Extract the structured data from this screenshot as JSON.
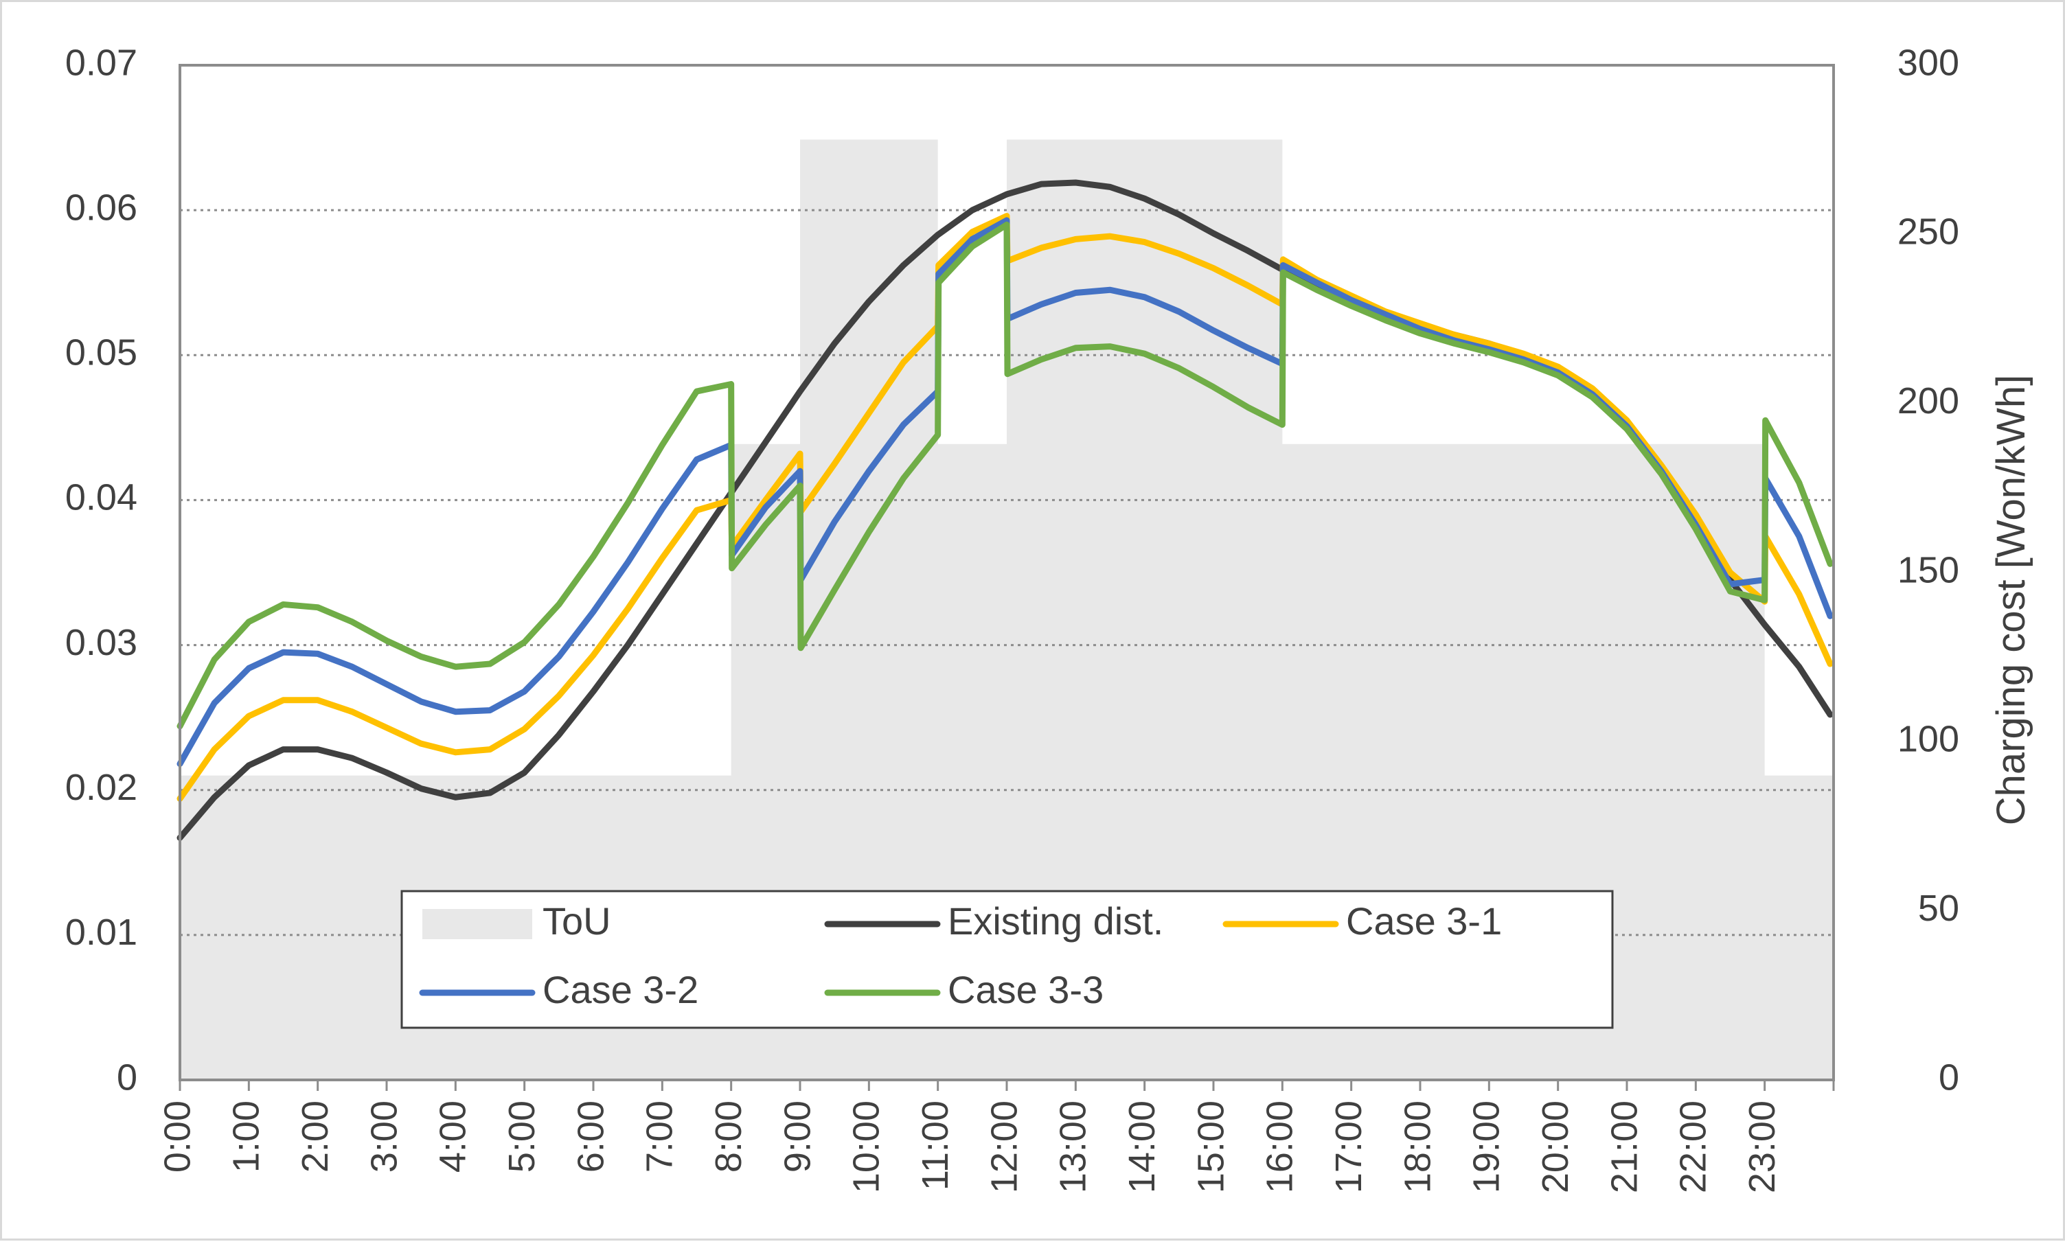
{
  "chart_data": {
    "type": "line",
    "title": "",
    "xlabel": "",
    "ylabel": "",
    "y2label": "Charging cost [Won/kWh]",
    "x": [
      "0:00",
      "1:00",
      "2:00",
      "3:00",
      "4:00",
      "5:00",
      "6:00",
      "7:00",
      "8:00",
      "9:00",
      "10:00",
      "11:00",
      "12:00",
      "13:00",
      "14:00",
      "15:00",
      "16:00",
      "17:00",
      "18:00",
      "19:00",
      "20:00",
      "21:00",
      "22:00",
      "23:00"
    ],
    "ylim": [
      0,
      0.07
    ],
    "yticks": [
      "0",
      "0.01",
      "0.02",
      "0.03",
      "0.04",
      "0.05",
      "0.06",
      "0.07"
    ],
    "y2lim": [
      0,
      300
    ],
    "y2ticks": [
      "0",
      "50",
      "100",
      "150",
      "200",
      "250",
      "300"
    ],
    "grid": "horizontal-dotted",
    "legend_position": "bottom-center-inside",
    "tou": {
      "name": "ToU",
      "color": "#e8e8e8",
      "axis": "secondary",
      "steps": [
        {
          "from": 0,
          "to": 8,
          "value": 90
        },
        {
          "from": 8,
          "to": 9,
          "value": 188
        },
        {
          "from": 9,
          "to": 11,
          "value": 278
        },
        {
          "from": 11,
          "to": 12,
          "value": 188
        },
        {
          "from": 12,
          "to": 16,
          "value": 278
        },
        {
          "from": 16,
          "to": 23,
          "value": 188
        },
        {
          "from": 23,
          "to": 24,
          "value": 90
        }
      ]
    },
    "series": [
      {
        "name": "Existing dist.",
        "color": "#404040",
        "x": [
          0,
          0.5,
          1,
          1.5,
          2,
          2.5,
          3,
          3.5,
          4,
          4.5,
          5,
          5.5,
          6,
          6.5,
          7,
          7.5,
          8,
          8.5,
          9,
          9.5,
          10,
          10.5,
          11,
          11.5,
          12,
          12.5,
          13,
          13.5,
          14,
          14.5,
          15,
          15.5,
          16,
          16.5,
          17,
          17.5,
          18,
          18.5,
          19,
          19.5,
          20,
          20.5,
          21,
          21.5,
          22,
          22.5,
          23,
          23.5,
          23.95
        ],
        "values": [
          0.0167,
          0.0195,
          0.0217,
          0.0228,
          0.0228,
          0.0222,
          0.0212,
          0.0201,
          0.0195,
          0.0198,
          0.0212,
          0.0238,
          0.0268,
          0.03,
          0.0335,
          0.037,
          0.0405,
          0.044,
          0.0475,
          0.0508,
          0.0537,
          0.0562,
          0.0583,
          0.06,
          0.0611,
          0.0618,
          0.0619,
          0.0616,
          0.0608,
          0.0597,
          0.0584,
          0.0572,
          0.0559,
          0.0547,
          0.0537,
          0.0528,
          0.052,
          0.0514,
          0.0508,
          0.05,
          0.049,
          0.0474,
          0.0452,
          0.0422,
          0.0385,
          0.0345,
          0.0314,
          0.0285,
          0.0252
        ]
      },
      {
        "name": "Case 3-1",
        "color": "#ffc000",
        "x": [
          0,
          0.5,
          1,
          1.5,
          2,
          2.5,
          3,
          3.5,
          4,
          4.5,
          5,
          5.5,
          6,
          6.5,
          7,
          7.5,
          8,
          8.01,
          8.5,
          9,
          9.01,
          9.5,
          10,
          10.5,
          11,
          11.01,
          11.5,
          12,
          12.01,
          12.5,
          13,
          13.5,
          14,
          14.5,
          15,
          15.5,
          16,
          16.01,
          16.5,
          17,
          17.5,
          18,
          18.5,
          19,
          19.5,
          20,
          20.5,
          21,
          21.5,
          22,
          22.5,
          23,
          23.01,
          23.5,
          23.95
        ],
        "values": [
          0.0194,
          0.0228,
          0.0251,
          0.0262,
          0.0262,
          0.0254,
          0.0243,
          0.0232,
          0.0226,
          0.0228,
          0.0242,
          0.0265,
          0.0293,
          0.0325,
          0.036,
          0.0393,
          0.04,
          0.0368,
          0.04,
          0.0432,
          0.0392,
          0.0425,
          0.046,
          0.0495,
          0.052,
          0.0562,
          0.0585,
          0.0596,
          0.0565,
          0.0574,
          0.058,
          0.0582,
          0.0578,
          0.057,
          0.056,
          0.0548,
          0.0535,
          0.0566,
          0.0552,
          0.0541,
          0.053,
          0.0522,
          0.0514,
          0.0508,
          0.0501,
          0.0492,
          0.0477,
          0.0455,
          0.0424,
          0.039,
          0.035,
          0.033,
          0.0375,
          0.0335,
          0.0287
        ]
      },
      {
        "name": "Case 3-2",
        "color": "#4472c4",
        "x": [
          0,
          0.5,
          1,
          1.5,
          2,
          2.5,
          3,
          3.5,
          4,
          4.5,
          5,
          5.5,
          6,
          6.5,
          7,
          7.5,
          8,
          8.01,
          8.5,
          9,
          9.01,
          9.5,
          10,
          10.5,
          11,
          11.01,
          11.5,
          12,
          12.01,
          12.5,
          13,
          13.5,
          14,
          14.5,
          15,
          15.5,
          16,
          16.01,
          16.5,
          17,
          17.5,
          18,
          18.5,
          19,
          19.5,
          20,
          20.5,
          21,
          21.5,
          22,
          22.5,
          23,
          23.01,
          23.5,
          23.95
        ],
        "values": [
          0.0218,
          0.026,
          0.0284,
          0.0295,
          0.0294,
          0.0285,
          0.0273,
          0.0261,
          0.0254,
          0.0255,
          0.0268,
          0.0292,
          0.0323,
          0.0357,
          0.0394,
          0.0428,
          0.0438,
          0.0362,
          0.0395,
          0.042,
          0.0345,
          0.0385,
          0.042,
          0.0452,
          0.0475,
          0.0556,
          0.058,
          0.0593,
          0.0525,
          0.0535,
          0.0543,
          0.0545,
          0.054,
          0.053,
          0.0517,
          0.0505,
          0.0494,
          0.0562,
          0.055,
          0.0538,
          0.0528,
          0.0518,
          0.051,
          0.0504,
          0.0497,
          0.0488,
          0.0473,
          0.0451,
          0.042,
          0.0383,
          0.0342,
          0.0345,
          0.0415,
          0.0375,
          0.032
        ]
      },
      {
        "name": "Case 3-3",
        "color": "#70ad47",
        "x": [
          0,
          0.5,
          1,
          1.5,
          2,
          2.5,
          3,
          3.5,
          4,
          4.5,
          5,
          5.5,
          6,
          6.5,
          7,
          7.5,
          8,
          8.01,
          8.5,
          9,
          9.01,
          9.5,
          10,
          10.5,
          11,
          11.01,
          11.5,
          12,
          12.01,
          12.5,
          13,
          13.5,
          14,
          14.5,
          15,
          15.5,
          16,
          16.01,
          16.5,
          17,
          17.5,
          18,
          18.5,
          19,
          19.5,
          20,
          20.5,
          21,
          21.5,
          22,
          22.5,
          23,
          23.01,
          23.5,
          23.95
        ],
        "values": [
          0.0244,
          0.029,
          0.0316,
          0.0328,
          0.0326,
          0.0316,
          0.0303,
          0.0292,
          0.0285,
          0.0287,
          0.0302,
          0.0328,
          0.0361,
          0.0398,
          0.0438,
          0.0475,
          0.048,
          0.0353,
          0.0383,
          0.041,
          0.0298,
          0.0338,
          0.0378,
          0.0415,
          0.0445,
          0.055,
          0.0575,
          0.059,
          0.0487,
          0.0497,
          0.0505,
          0.0506,
          0.0501,
          0.0491,
          0.0478,
          0.0464,
          0.0452,
          0.0557,
          0.0545,
          0.0534,
          0.0524,
          0.0515,
          0.0508,
          0.0502,
          0.0495,
          0.0486,
          0.0471,
          0.0449,
          0.0418,
          0.038,
          0.0337,
          0.0331,
          0.0455,
          0.0412,
          0.0356
        ]
      }
    ]
  }
}
